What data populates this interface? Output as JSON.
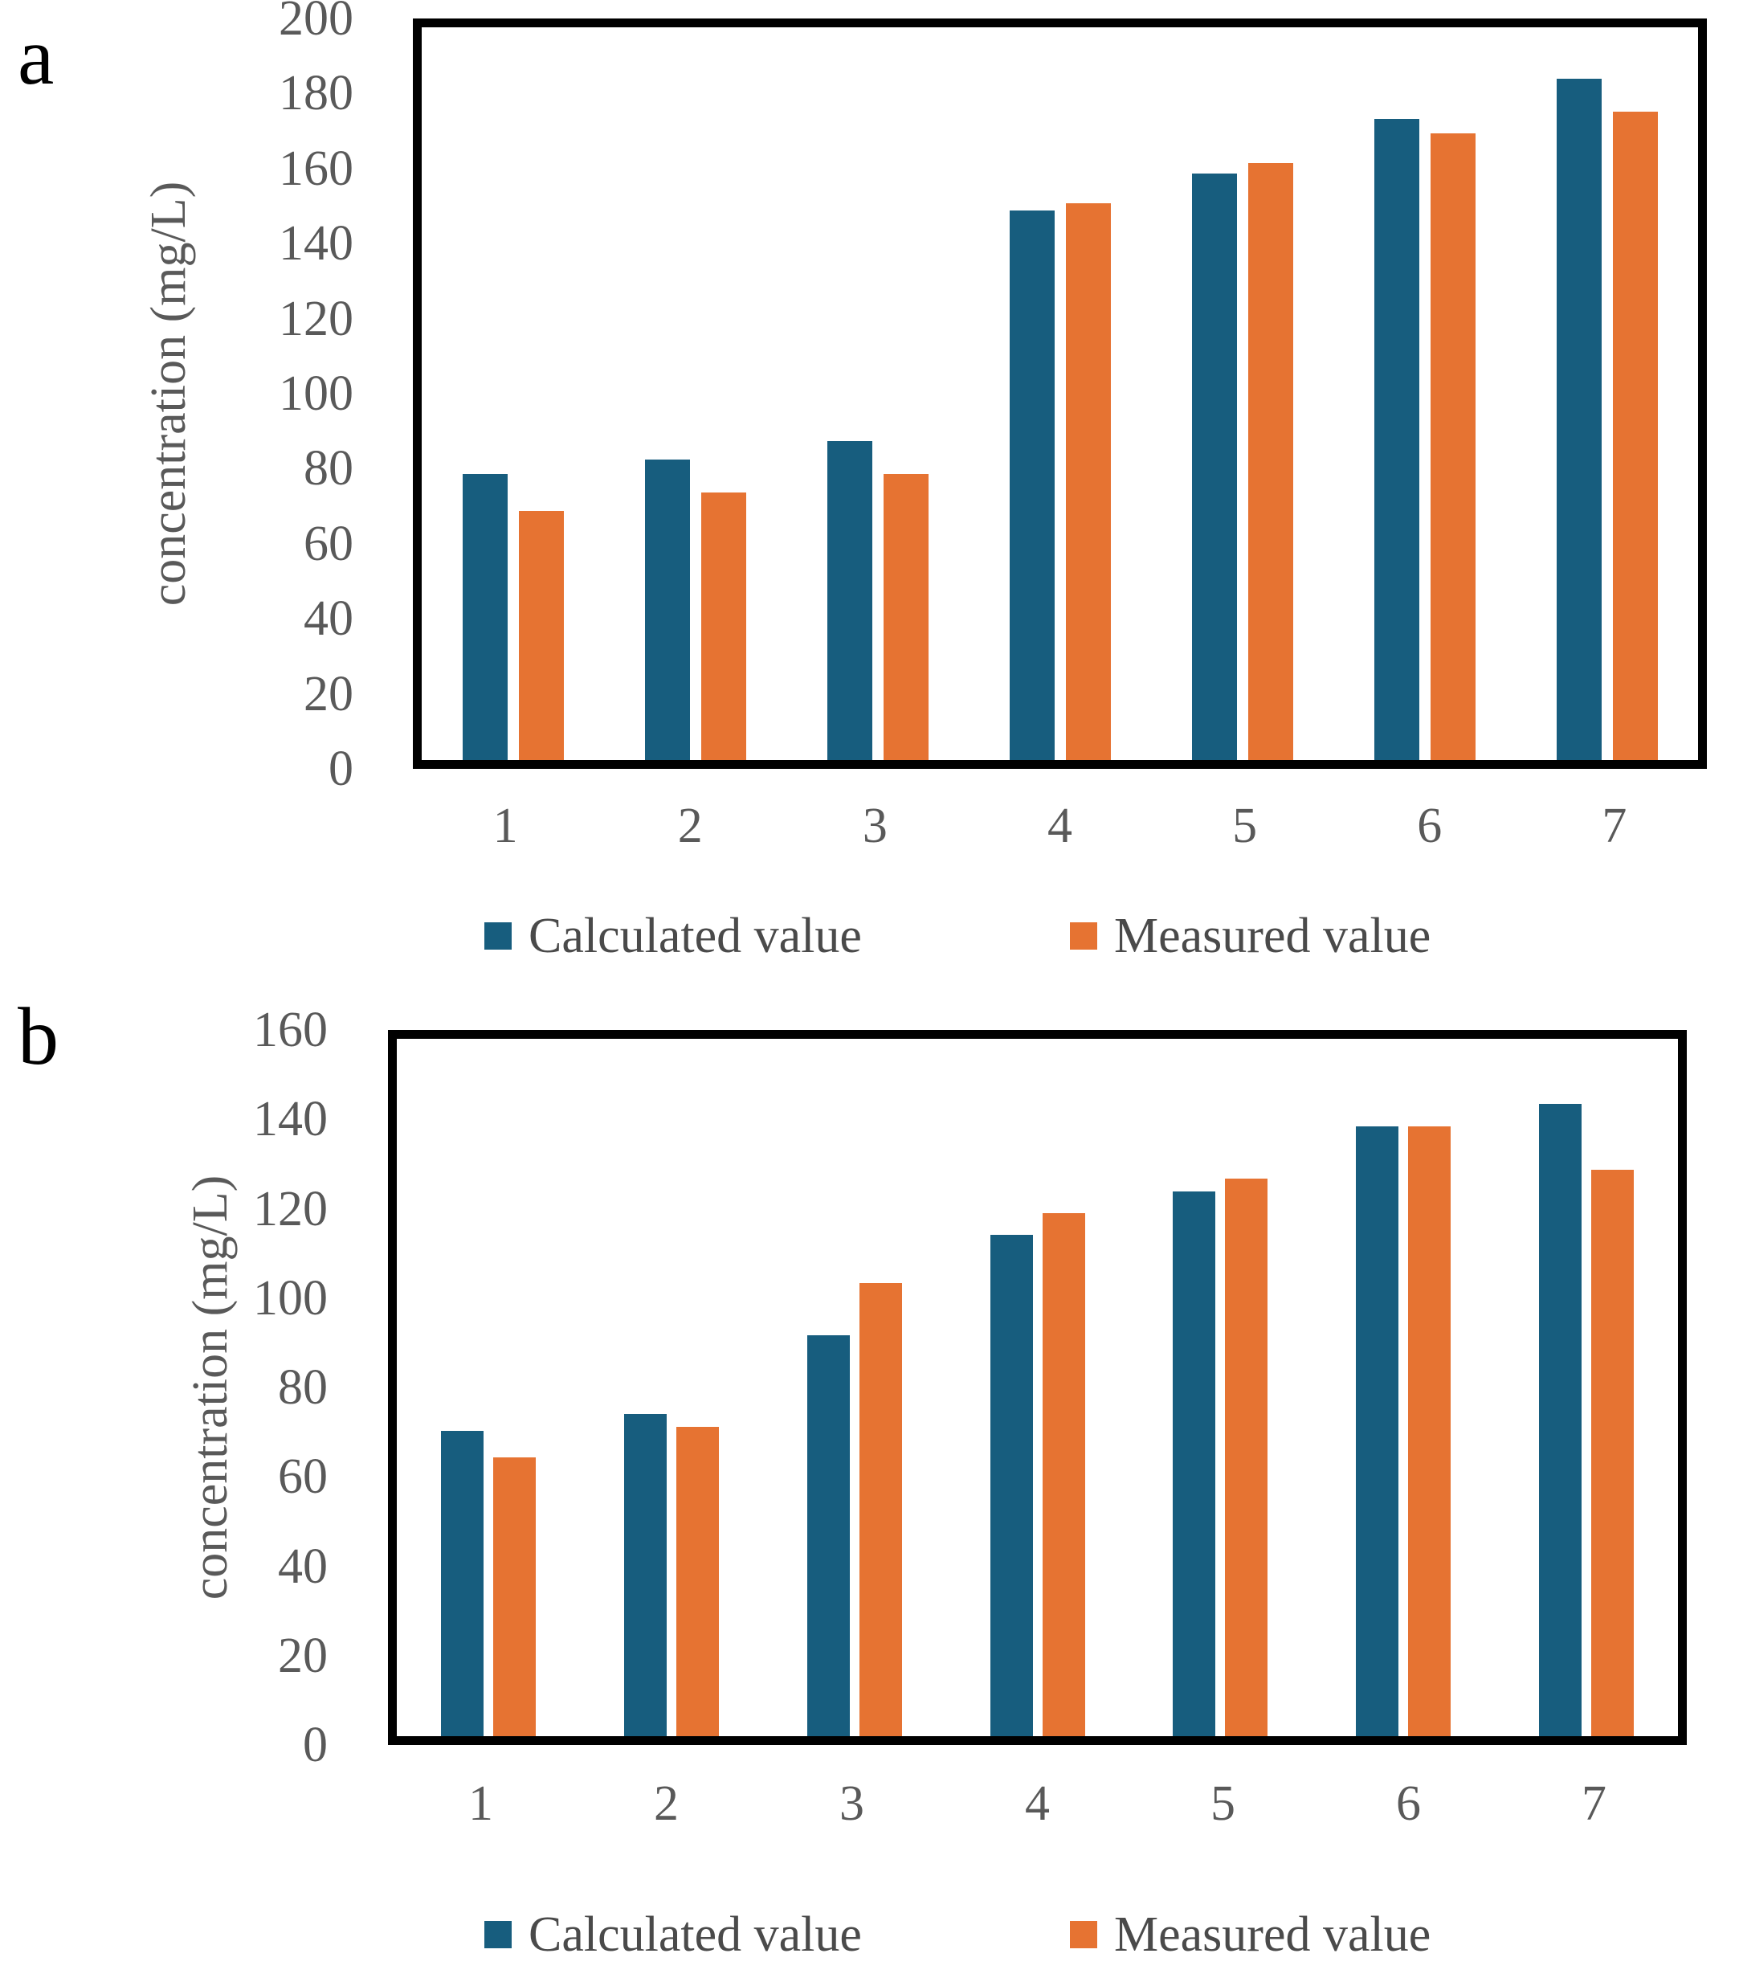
{
  "figure": {
    "panels": [
      {
        "label": "a",
        "ylabel": "concentration (mg/L)"
      },
      {
        "label": "b",
        "ylabel": "concentration (mg/L)"
      }
    ]
  },
  "colors": {
    "calculated": "#175D7E",
    "measured": "#E67332",
    "axis": "#000000",
    "tick_text": "#595959",
    "legend_text": "#4A4A4A"
  },
  "chart_data": [
    {
      "type": "bar",
      "panel": "a",
      "title": "",
      "xlabel": "",
      "ylabel": "concentration (mg/L)",
      "categories": [
        "1",
        "2",
        "3",
        "4",
        "5",
        "6",
        "7"
      ],
      "series": [
        {
          "name": "Calculated value",
          "color": "#175D7E",
          "values": [
            78,
            82,
            87,
            150,
            160,
            175,
            186
          ]
        },
        {
          "name": "Measured value",
          "color": "#E67332",
          "values": [
            68,
            73,
            78,
            152,
            163,
            171,
            177
          ]
        }
      ],
      "ylim": [
        0,
        200
      ],
      "yticks": [
        0,
        20,
        40,
        60,
        80,
        100,
        120,
        140,
        160,
        180,
        200
      ],
      "grid": false,
      "legend_position": "bottom"
    },
    {
      "type": "bar",
      "panel": "b",
      "title": "",
      "xlabel": "",
      "ylabel": "concentration (mg/L)",
      "categories": [
        "1",
        "2",
        "3",
        "4",
        "5",
        "6",
        "7"
      ],
      "series": [
        {
          "name": "Calculated value",
          "color": "#175D7E",
          "values": [
            70,
            74,
            92,
            115,
            125,
            140,
            145
          ]
        },
        {
          "name": "Measured value",
          "color": "#E67332",
          "values": [
            64,
            71,
            104,
            120,
            128,
            140,
            130
          ]
        }
      ],
      "ylim": [
        0,
        160
      ],
      "yticks": [
        0,
        20,
        40,
        60,
        80,
        100,
        120,
        140,
        160
      ],
      "grid": false,
      "legend_position": "bottom"
    }
  ]
}
